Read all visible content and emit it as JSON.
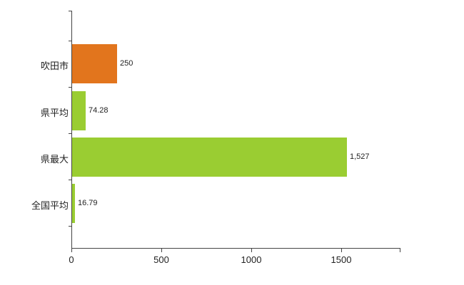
{
  "chart_data": {
    "type": "bar",
    "orientation": "horizontal",
    "title": "",
    "xlabel": "",
    "ylabel": "",
    "categories": [
      "吹田市",
      "県平均",
      "県最大",
      "全国平均"
    ],
    "values": [
      250,
      74.28,
      1527,
      16.79
    ],
    "value_labels": [
      "250",
      "74.28",
      "1,527",
      "16.79"
    ],
    "bar_colors": [
      "#e2751d",
      "#9acd32",
      "#9acd32",
      "#9acd32"
    ],
    "x_ticks": [
      0,
      500,
      1000,
      1500
    ],
    "x_tick_labels": [
      "0",
      "500",
      "1000",
      "1500"
    ],
    "xlim": [
      0,
      1825
    ],
    "grid": false,
    "legend": "none",
    "background": "#ffffff",
    "axis_color": "#444444"
  }
}
